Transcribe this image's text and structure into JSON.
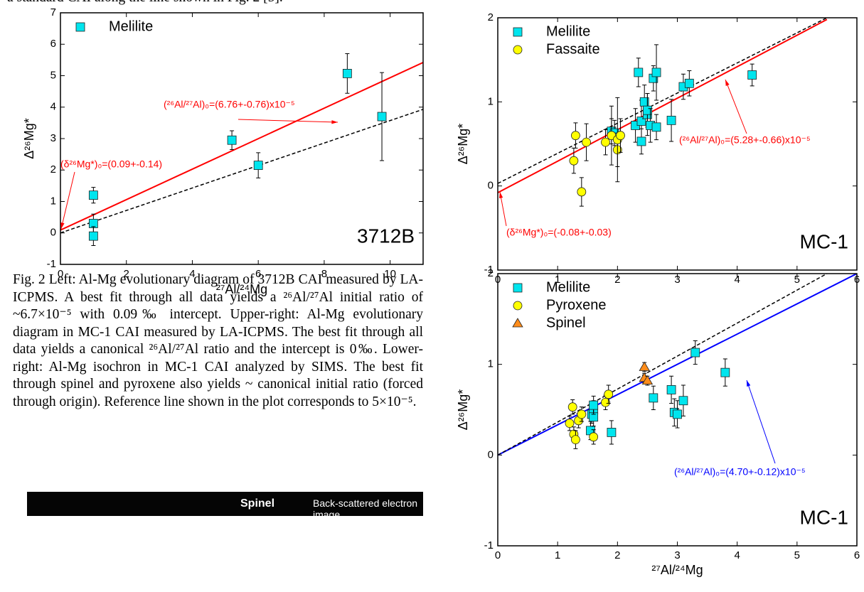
{
  "header": {
    "fragment": "a standard CAI along the line shown in Fig. 2 [5]."
  },
  "caption": "Fig. 2 Left: Al-Mg evolutionary diagram of 3712B CAI measured by LA-ICPMS. A best fit through all data yields a ²⁶Al/²⁷Al initial ratio of ~6.7×10⁻⁵ with 0.09‰ intercept. Upper-right: Al-Mg evolutionary diagram in MC-1 CAI measured by LA-ICPMS. The best fit through all data yields a canonical ²⁶Al/²⁷Al ratio and the intercept is 0‰. Lower-right: Al-Mg isochron in MC-1 CAI analyzed by SIMS. The best fit through spinel and pyroxene also yields ~ canonical initial ratio (forced through origin). Reference line shown in the plot corresponds to 5×10⁻⁵.",
  "image": {
    "label": "Spinel",
    "title": "Back-scattered electron image"
  },
  "chart_data": [
    {
      "type": "scatter",
      "title": "3712B",
      "x_label": "²⁷Al/²⁴Mg",
      "y_label": "Δ²⁶Mg*",
      "xlim": [
        0,
        11
      ],
      "ylim": [
        -1,
        7
      ],
      "xticks": [
        0,
        2,
        4,
        6,
        8,
        10
      ],
      "yticks": [
        -1,
        0,
        1,
        2,
        3,
        4,
        5,
        6,
        7
      ],
      "series": [
        {
          "name": "Melilite",
          "color": "#00e5ee",
          "marker": "square",
          "x": [
            1.0,
            1.0,
            1.0,
            5.2,
            6.0,
            8.7,
            9.75
          ],
          "values": [
            1.2,
            0.3,
            -0.1,
            2.95,
            2.15,
            5.07,
            3.7
          ],
          "errors": [
            0.25,
            0.3,
            0.3,
            0.3,
            0.4,
            0.63,
            1.4
          ]
        }
      ],
      "lines": [
        {
          "color": "#ff0000",
          "dash": false,
          "x": [
            0,
            11
          ],
          "values": [
            0.09,
            5.42
          ]
        },
        {
          "color": "#000000",
          "dash": true,
          "x": [
            0,
            11
          ],
          "values": [
            0,
            3.93
          ]
        }
      ],
      "annotations": [
        {
          "text": "(²⁶Al/²⁷Al)₀=(6.76+-0.76)x10⁻⁵",
          "color": "#ff0000"
        },
        {
          "text": "(δ²⁶Mg*)₀=(0.09+-0.14)",
          "color": "#ff0000"
        }
      ]
    },
    {
      "type": "scatter",
      "title": "MC-1",
      "y_label": "Δ²⁶Mg*",
      "xlim": [
        0,
        6
      ],
      "ylim": [
        -1,
        2
      ],
      "xticks": [
        0,
        1,
        2,
        3,
        4,
        5,
        6
      ],
      "yticks": [
        -1,
        0,
        1,
        2
      ],
      "series": [
        {
          "name": "Melilite",
          "color": "#00e5ee",
          "marker": "square",
          "x": [
            1.9,
            1.95,
            2.3,
            2.35,
            2.4,
            2.4,
            2.45,
            2.5,
            2.5,
            2.55,
            2.6,
            2.65,
            2.65,
            2.9,
            3.1,
            3.2,
            4.25
          ],
          "values": [
            0.65,
            0.63,
            0.72,
            1.35,
            0.77,
            0.53,
            1.0,
            0.85,
            0.9,
            0.72,
            1.28,
            1.35,
            0.7,
            0.78,
            1.18,
            1.22,
            1.32
          ],
          "errors": [
            0.15,
            0.15,
            0.2,
            0.17,
            0.25,
            0.15,
            0.2,
            0.25,
            0.2,
            0.2,
            0.15,
            0.33,
            0.15,
            0.25,
            0.15,
            0.15,
            0.13
          ]
        },
        {
          "name": "Fassaite",
          "color": "#ffff00",
          "marker": "circle",
          "x": [
            1.27,
            1.3,
            1.4,
            1.48,
            1.8,
            1.9,
            2.0,
            2.0,
            2.05
          ],
          "values": [
            0.3,
            0.6,
            -0.07,
            0.52,
            0.52,
            0.6,
            0.43,
            0.55,
            0.6
          ],
          "errors": [
            0.15,
            0.15,
            0.17,
            0.22,
            0.15,
            0.35,
            0.2,
            0.5,
            0.2
          ]
        }
      ],
      "lines": [
        {
          "color": "#ff0000",
          "dash": false,
          "x": [
            0,
            5.5
          ],
          "values": [
            -0.08,
            1.98
          ]
        },
        {
          "color": "#000000",
          "dash": true,
          "x": [
            0,
            5.5
          ],
          "values": [
            0.03,
            2.0
          ]
        }
      ],
      "annotations": [
        {
          "text": "(²⁶Al/²⁷Al)₀=(5.28+-0.66)x10⁻⁵",
          "color": "#ff0000"
        },
        {
          "text": "(δ²⁶Mg*)₀=(-0.08+-0.03)",
          "color": "#ff0000"
        }
      ]
    },
    {
      "type": "scatter",
      "title": "MC-1",
      "x_label": "²⁷Al/²⁴Mg",
      "y_label": "Δ²⁶Mg*",
      "xlim": [
        0,
        6
      ],
      "ylim": [
        -1,
        2
      ],
      "xticks": [
        0,
        1,
        2,
        3,
        4,
        5,
        6
      ],
      "yticks": [
        -1,
        0,
        1,
        2
      ],
      "series": [
        {
          "name": "Melilite",
          "color": "#00e5ee",
          "marker": "square",
          "x": [
            1.55,
            1.57,
            1.6,
            1.6,
            1.6,
            1.9,
            2.6,
            2.9,
            2.95,
            3.0,
            3.1,
            3.3,
            3.8
          ],
          "values": [
            0.27,
            0.45,
            0.5,
            0.42,
            0.55,
            0.25,
            0.63,
            0.72,
            0.47,
            0.45,
            0.6,
            1.13,
            0.91
          ],
          "errors": [
            0.1,
            0.1,
            0.1,
            0.1,
            0.1,
            0.13,
            0.13,
            0.15,
            0.15,
            0.15,
            0.17,
            0.13,
            0.15
          ]
        },
        {
          "name": "Pyroxene",
          "color": "#ffff00",
          "marker": "circle",
          "x": [
            1.2,
            1.25,
            1.27,
            1.3,
            1.35,
            1.4,
            1.6,
            1.8,
            1.85
          ],
          "values": [
            0.35,
            0.53,
            0.23,
            0.17,
            0.38,
            0.45,
            0.2,
            0.58,
            0.67
          ],
          "errors": [
            0.08,
            0.08,
            0.08,
            0.1,
            0.08,
            0.08,
            0.08,
            0.08,
            0.1
          ]
        },
        {
          "name": "Spinel",
          "color": "#ff8c1a",
          "marker": "triangle",
          "x": [
            2.45,
            2.45,
            2.5
          ],
          "values": [
            0.97,
            0.85,
            0.82
          ],
          "errors": [
            0.05,
            0.05,
            0.05
          ]
        }
      ],
      "lines": [
        {
          "color": "#0000ff",
          "dash": false,
          "x": [
            0,
            6
          ],
          "values": [
            0,
            2.0
          ]
        },
        {
          "color": "#000000",
          "dash": true,
          "x": [
            0,
            5.5
          ],
          "values": [
            0,
            2.0
          ]
        }
      ],
      "annotations": [
        {
          "text": "(²⁶Al/²⁷Al)₀=(4.70+-0.12)x10⁻⁵",
          "color": "#0000ff"
        }
      ]
    }
  ]
}
